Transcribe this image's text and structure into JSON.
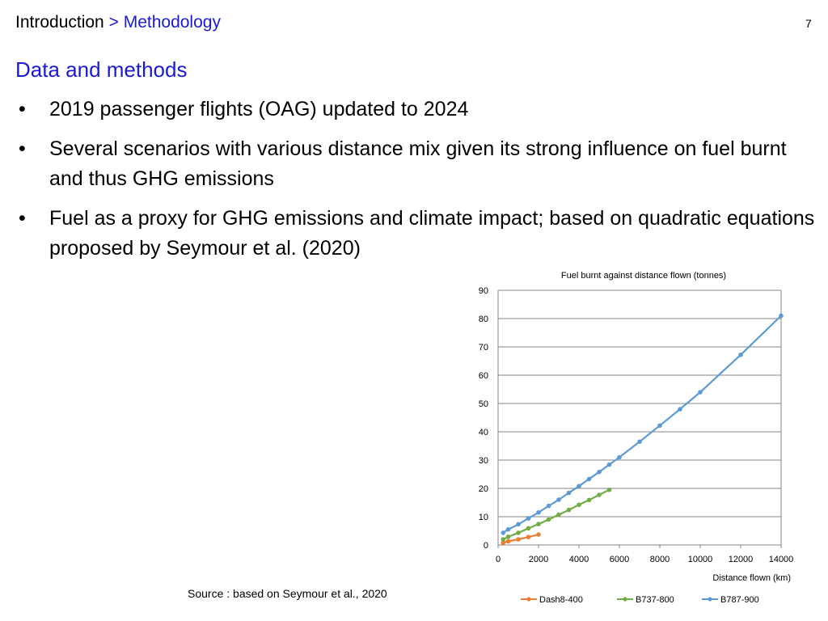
{
  "breadcrumb": {
    "parent": "Introduction",
    "separator": ">",
    "current": "Methodology"
  },
  "page_number": "7",
  "section_title": "Data and methods",
  "bullet_glyph": "•",
  "bullets": [
    "2019 passenger flights (OAG) updated to 2024",
    "Several scenarios with various distance mix given its strong influence on fuel burnt and thus GHG emissions",
    "Fuel as a proxy for GHG emissions and climate impact; based on quadratic equations proposed by Seymour et al. (2020)"
  ],
  "source": "Source : based on Seymour et al., 2020",
  "chart_data": {
    "type": "line",
    "title": "Fuel burnt against distance flown (tonnes)",
    "xlabel": "Distance flown (km)",
    "ylabel": "",
    "xlim": [
      0,
      14000
    ],
    "ylim": [
      0,
      90
    ],
    "xticks": [
      "0",
      "2000",
      "4000",
      "6000",
      "8000",
      "10000",
      "12000",
      "14000"
    ],
    "yticks": [
      "0",
      "10",
      "20",
      "30",
      "40",
      "50",
      "60",
      "70",
      "80",
      "90"
    ],
    "grid": "horizontal",
    "legend_position": "bottom",
    "series": [
      {
        "name": "Dash8-400",
        "color": "#ED7D31",
        "points": [
          [
            250,
            0.8
          ],
          [
            500,
            1.3
          ],
          [
            1000,
            2.0
          ],
          [
            1500,
            2.8
          ],
          [
            2000,
            3.7
          ]
        ]
      },
      {
        "name": "B737-800",
        "color": "#70AD47",
        "points": [
          [
            250,
            2.0
          ],
          [
            500,
            2.9
          ],
          [
            1000,
            4.3
          ],
          [
            1500,
            5.9
          ],
          [
            2000,
            7.4
          ],
          [
            2500,
            9.0
          ],
          [
            3000,
            10.7
          ],
          [
            3500,
            12.4
          ],
          [
            4000,
            14.2
          ],
          [
            4500,
            15.9
          ],
          [
            5000,
            17.7
          ],
          [
            5500,
            19.5
          ]
        ]
      },
      {
        "name": "B787-900",
        "color": "#5B9BD5",
        "points": [
          [
            250,
            4.3
          ],
          [
            500,
            5.5
          ],
          [
            1000,
            7.3
          ],
          [
            1500,
            9.4
          ],
          [
            2000,
            11.5
          ],
          [
            2500,
            13.8
          ],
          [
            3000,
            16.0
          ],
          [
            3500,
            18.4
          ],
          [
            4000,
            20.8
          ],
          [
            4500,
            23.3
          ],
          [
            5000,
            25.8
          ],
          [
            5500,
            28.4
          ],
          [
            6000,
            31.0
          ],
          [
            7000,
            36.5
          ],
          [
            8000,
            42.2
          ],
          [
            9000,
            48.0
          ],
          [
            10000,
            54.0
          ],
          [
            12000,
            67.2
          ],
          [
            14000,
            81.0
          ]
        ]
      }
    ]
  }
}
